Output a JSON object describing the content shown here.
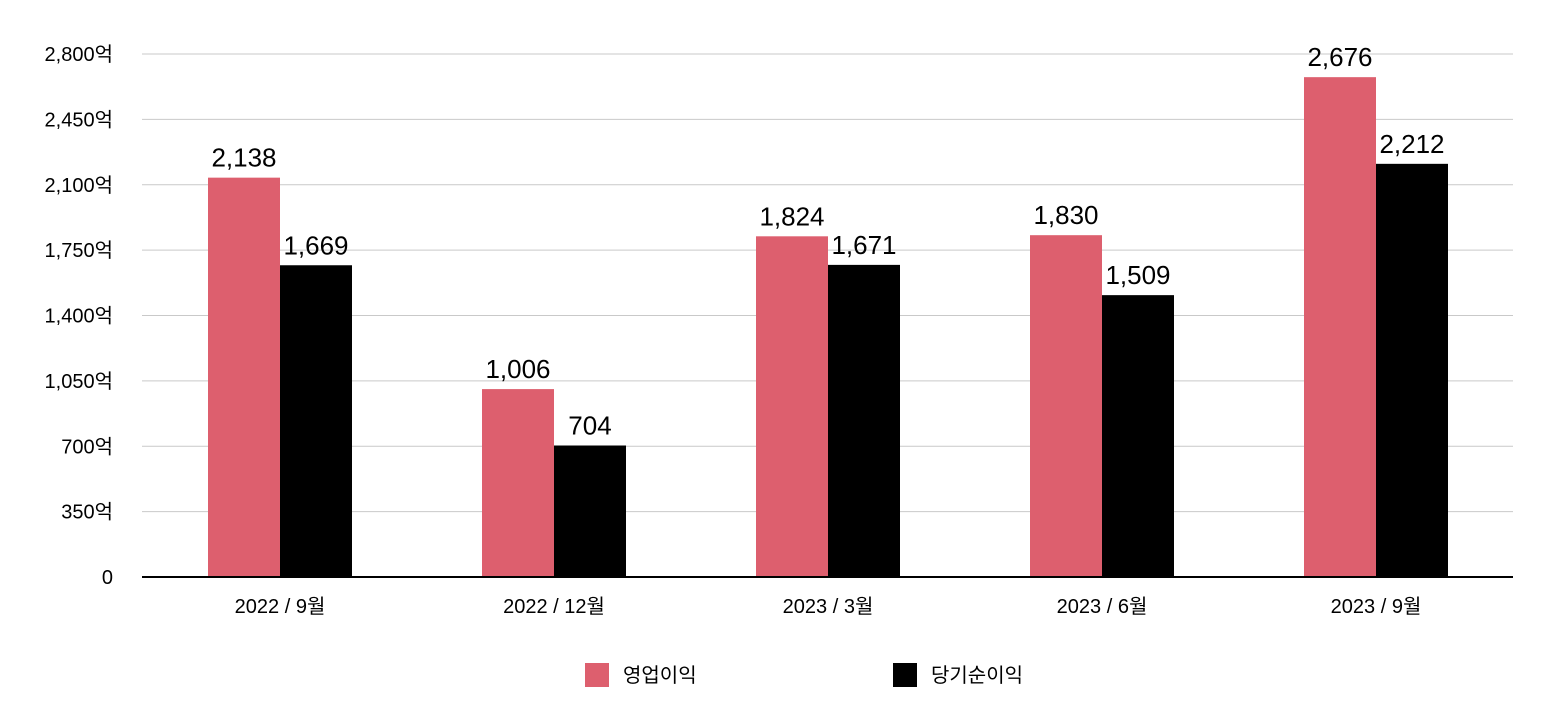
{
  "chart_data": {
    "type": "bar",
    "categories": [
      "2022 / 9월",
      "2022 / 12월",
      "2023 / 3월",
      "2023 / 6월",
      "2023 / 9월"
    ],
    "series": [
      {
        "name": "영업이익",
        "color": "#dd5f6e",
        "values": [
          2138,
          1006,
          1824,
          1830,
          2676
        ]
      },
      {
        "name": "당기순이익",
        "color": "#000000",
        "values": [
          1669,
          704,
          1671,
          1509,
          2212
        ]
      }
    ],
    "data_labels": [
      [
        "2,138",
        "1,006",
        "1,824",
        "1,830",
        "2,676"
      ],
      [
        "1,669",
        "704",
        "1,671",
        "1,509",
        "2,212"
      ]
    ],
    "yticks": [
      0,
      350,
      700,
      1050,
      1400,
      1750,
      2100,
      2450,
      2800
    ],
    "ytick_labels": [
      "0",
      "350억",
      "700억",
      "1,050억",
      "1,400억",
      "1,750억",
      "2,100억",
      "2,450억",
      "2,800억"
    ],
    "ylim": [
      0,
      2800
    ],
    "grid": true,
    "legend_position": "bottom"
  }
}
